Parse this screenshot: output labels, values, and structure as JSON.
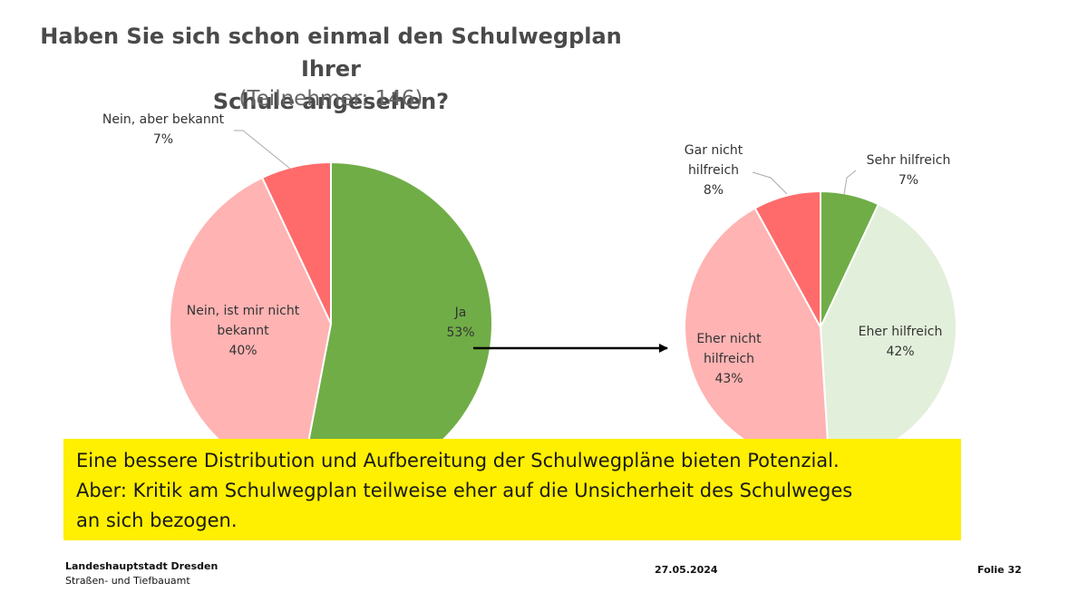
{
  "slide": {
    "title_line1": "Haben Sie sich schon einmal den Schulwegplan Ihrer",
    "title_line2": "Schule angesehen?",
    "subtitle": "(Teilnehmer: 146)",
    "callout": [
      "Eine bessere Distribution und Aufbereitung der Schulwegpläne bieten Potenzial.",
      "Aber: Kritik am Schulwegplan teilweise eher auf die Unsicherheit des Schulweges",
      "an sich bezogen."
    ],
    "footer": {
      "org_line1": "Landeshauptstadt Dresden",
      "org_line2": "Straßen- und Tiefbauamt",
      "date": "27.05.2024",
      "page": "Folie 32"
    }
  },
  "chart_data": [
    {
      "type": "pie",
      "title": "Haben Sie sich schon einmal den Schulwegplan Ihrer Schule angesehen?",
      "categories": [
        "Ja",
        "Nein, ist mir nicht bekannt",
        "Nein, aber bekannt"
      ],
      "category_lines": [
        [
          "Ja"
        ],
        [
          "Nein, ist mir nicht",
          "bekannt"
        ],
        [
          "Nein, aber bekannt"
        ]
      ],
      "values": [
        53,
        40,
        7
      ],
      "value_labels": [
        "53%",
        "40%",
        "7%"
      ],
      "colors": [
        "#70ad47",
        "#ffb3b3",
        "#ff6b6b"
      ]
    },
    {
      "type": "pie",
      "categories": [
        "Sehr hilfreich",
        "Eher hilfreich",
        "Eher nicht hilfreich",
        "Gar nicht hilfreich"
      ],
      "category_lines": [
        [
          "Sehr hilfreich"
        ],
        [
          "Eher hilfreich"
        ],
        [
          "Eher nicht",
          "hilfreich"
        ],
        [
          "Gar nicht",
          "hilfreich"
        ]
      ],
      "values": [
        7,
        42,
        43,
        8
      ],
      "value_labels": [
        "7%",
        "42%",
        "43%",
        "8%"
      ],
      "colors": [
        "#70ad47",
        "#e2efda",
        "#ffb3b3",
        "#ff6b6b"
      ]
    }
  ]
}
